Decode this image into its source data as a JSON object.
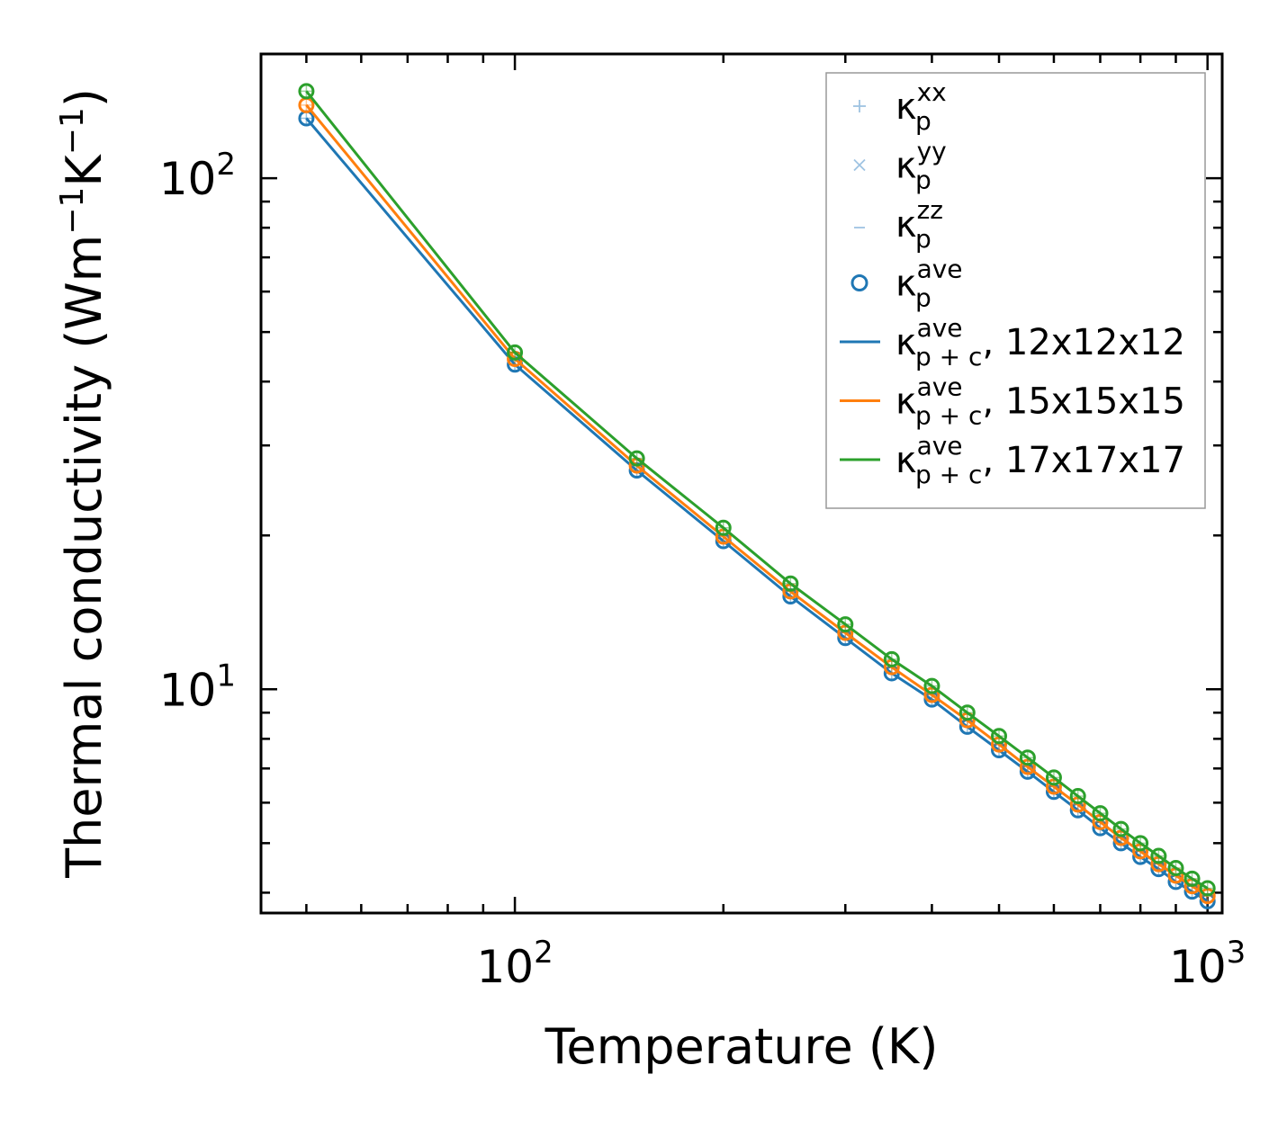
{
  "chart_data": {
    "type": "line",
    "xscale": "log",
    "yscale": "log",
    "xlim": [
      43,
      1050
    ],
    "ylim": [
      3.65,
      175
    ],
    "xlabel": "Temperature (K)",
    "ylabel": {
      "text": "Thermal conductivity (Wm",
      "sup1": "−1",
      "mid": "K",
      "sup2": "−1",
      "end": ")"
    },
    "x_ticks": [
      {
        "value": 100,
        "base": "10",
        "exp": "2"
      },
      {
        "value": 1000,
        "base": "10",
        "exp": "3"
      }
    ],
    "y_ticks": [
      {
        "value": 10,
        "base": "10",
        "exp": "1"
      },
      {
        "value": 100,
        "base": "10",
        "exp": "2"
      }
    ],
    "x": [
      50,
      100,
      150,
      200,
      250,
      300,
      350,
      400,
      450,
      500,
      550,
      600,
      650,
      700,
      750,
      800,
      850,
      900,
      950,
      1000
    ],
    "series": [
      {
        "name": "12x12x12",
        "color": "#1f77b4",
        "values": [
          131.0,
          43.2,
          26.8,
          19.5,
          15.2,
          12.6,
          10.75,
          9.55,
          8.45,
          7.6,
          6.9,
          6.3,
          5.8,
          5.35,
          5.0,
          4.7,
          4.45,
          4.2,
          4.02,
          3.85
        ]
      },
      {
        "name": "15x15x15",
        "color": "#ff7f0e",
        "values": [
          139.0,
          44.3,
          27.4,
          19.9,
          15.55,
          12.9,
          11.05,
          9.75,
          8.7,
          7.8,
          7.05,
          6.45,
          5.95,
          5.5,
          5.12,
          4.82,
          4.55,
          4.32,
          4.12,
          3.94
        ]
      },
      {
        "name": "17x17x17",
        "color": "#2ca02c",
        "values": [
          148.0,
          45.6,
          28.3,
          20.7,
          16.1,
          13.4,
          11.45,
          10.15,
          9.0,
          8.1,
          7.35,
          6.72,
          6.18,
          5.72,
          5.33,
          5.0,
          4.72,
          4.47,
          4.26,
          4.08
        ]
      }
    ],
    "legend": {
      "position": "top-right",
      "entries": [
        {
          "marker": "plus",
          "symbol": "κ",
          "sub": "p",
          "sup": "xx",
          "suffix": "",
          "color": "#9ec3e2"
        },
        {
          "marker": "cross",
          "symbol": "κ",
          "sub": "p",
          "sup": "yy",
          "suffix": "",
          "color": "#9ec3e2"
        },
        {
          "marker": "hline",
          "symbol": "κ",
          "sub": "p",
          "sup": "zz",
          "suffix": "",
          "color": "#9ec3e2"
        },
        {
          "marker": "circle",
          "symbol": "κ",
          "sub": "p",
          "sup": "ave",
          "suffix": "",
          "color": "#1f77b4"
        },
        {
          "marker": "line",
          "symbol": "κ",
          "sub": "p + c",
          "sup": "ave",
          "suffix": ", 12x12x12",
          "color": "#1f77b4"
        },
        {
          "marker": "line",
          "symbol": "κ",
          "sub": "p + c",
          "sup": "ave",
          "suffix": ", 15x15x15",
          "color": "#ff7f0e"
        },
        {
          "marker": "line",
          "symbol": "κ",
          "sub": "p + c",
          "sup": "ave",
          "suffix": ", 17x17x17",
          "color": "#2ca02c"
        }
      ]
    }
  }
}
